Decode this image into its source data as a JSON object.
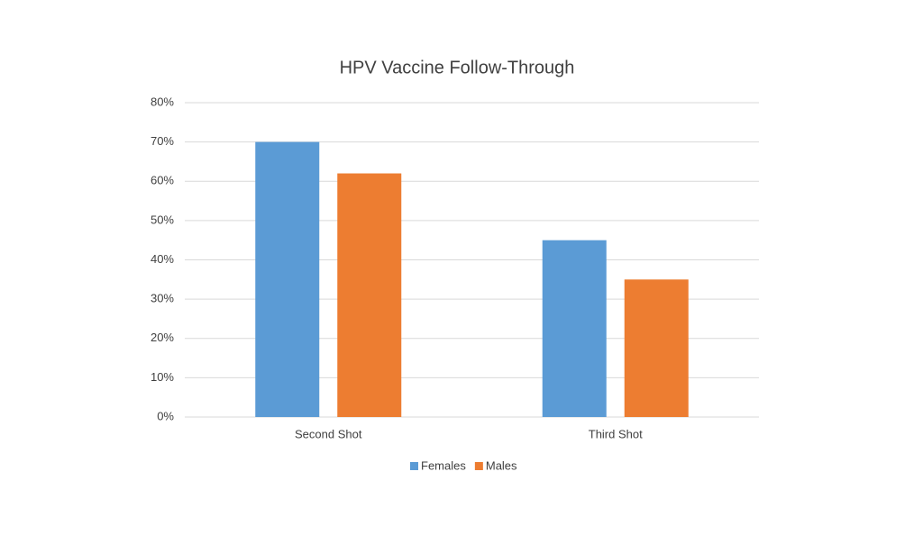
{
  "chart_data": {
    "type": "bar",
    "title": "HPV Vaccine Follow-Through",
    "categories": [
      "Second Shot",
      "Third Shot"
    ],
    "series": [
      {
        "name": "Females",
        "color": "#5b9bd5",
        "values": [
          70,
          45
        ]
      },
      {
        "name": "Males",
        "color": "#ed7d31",
        "values": [
          62,
          35
        ]
      }
    ],
    "ylim": [
      0,
      80
    ],
    "yticks": [
      {
        "value": 0,
        "label": "0%"
      },
      {
        "value": 10,
        "label": "10%"
      },
      {
        "value": 20,
        "label": "20%"
      },
      {
        "value": 30,
        "label": "30%"
      },
      {
        "value": 40,
        "label": "40%"
      },
      {
        "value": 50,
        "label": "50%"
      },
      {
        "value": 60,
        "label": "60%"
      },
      {
        "value": 70,
        "label": "70%"
      },
      {
        "value": 80,
        "label": "80%"
      }
    ],
    "grid": true,
    "legend": "bottom"
  }
}
